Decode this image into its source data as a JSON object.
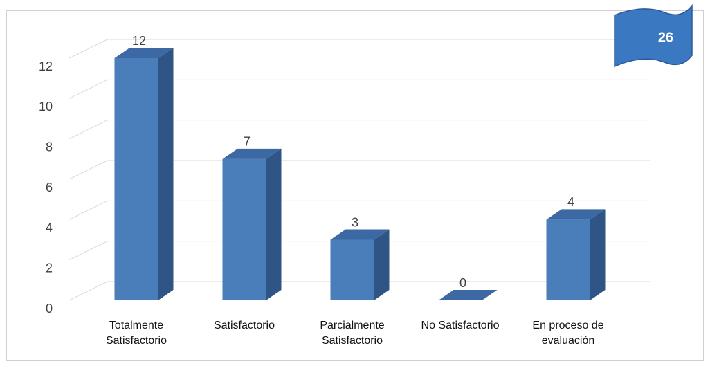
{
  "chart_data": {
    "type": "bar3d",
    "categories": [
      "Totalmente Satisfactorio",
      "Satisfactorio",
      "Parcialmente Satisfactorio",
      "No Satisfactorio",
      "En proceso de evaluación"
    ],
    "values": [
      12,
      7,
      3,
      0,
      4
    ],
    "color": "#4a7ebb",
    "ylim": [
      0,
      12
    ],
    "yticks": [
      0,
      2,
      4,
      6,
      8,
      10,
      12
    ],
    "grid": true,
    "annotation": "26"
  }
}
